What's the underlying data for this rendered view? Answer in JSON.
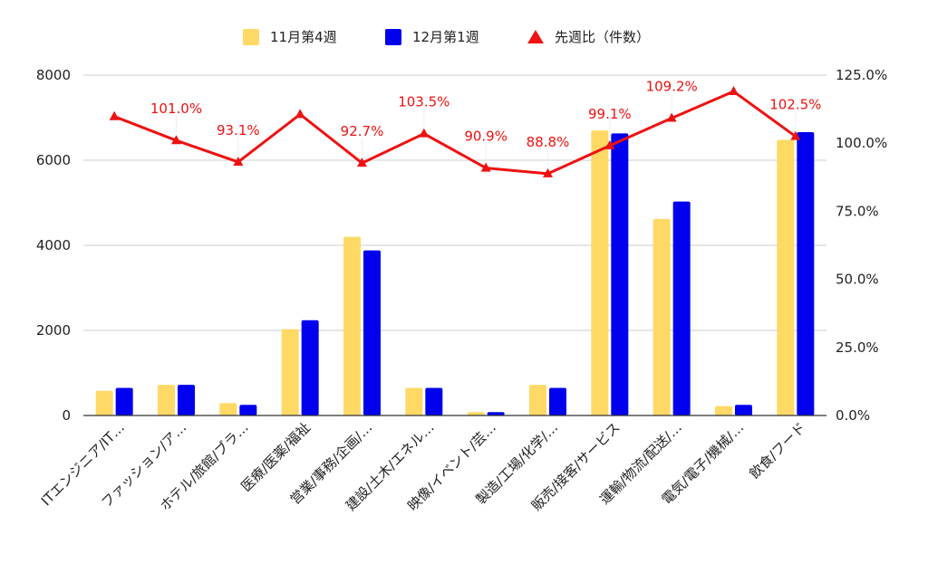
{
  "chart_data": {
    "type": "bar",
    "categories": [
      "ITエンジニア/IT…",
      "ファッション/ア…",
      "ホテル/旅館/ブラ…",
      "医療/医薬/福祉",
      "営業/事務/企画/…",
      "建設/土木/エネル…",
      "映像/イベント/芸…",
      "製造/工場/化学/…",
      "販売/接客/サービス",
      "運輸/物流/配送/…",
      "電気/電子/機械/…",
      "飲食/フード"
    ],
    "series": [
      {
        "name": "11月第4週",
        "type": "bar",
        "axis": "left",
        "color": "#FFD966",
        "values": [
          580,
          720,
          290,
          2030,
          4200,
          650,
          80,
          720,
          6700,
          4620,
          220,
          6480
        ]
      },
      {
        "name": "12月第1週",
        "type": "bar",
        "axis": "left",
        "color": "#0000EE",
        "values": [
          650,
          720,
          250,
          2240,
          3880,
          650,
          80,
          650,
          6630,
          5030,
          250,
          6660
        ]
      },
      {
        "name": "先週比（件数）",
        "type": "line",
        "axis": "right",
        "color": "#EE1111",
        "values": [
          109.8,
          101.0,
          93.1,
          110.6,
          92.7,
          103.5,
          90.9,
          88.8,
          99.1,
          109.2,
          119.0,
          102.5
        ],
        "labels": [
          "",
          "101.0%",
          "93.1%",
          "",
          "92.7%",
          "103.5%",
          "90.9%",
          "88.8%",
          "99.1%",
          "109.2%",
          "",
          "102.5%"
        ]
      }
    ],
    "y_left": {
      "ylim": [
        0,
        8000
      ],
      "ticks": [
        "0",
        "2000",
        "4000",
        "6000",
        "8000"
      ]
    },
    "y_right": {
      "ylim": [
        0,
        125
      ],
      "ticks": [
        "0.0%",
        "25.0%",
        "50.0%",
        "75.0%",
        "100.0%",
        "125.0%"
      ]
    },
    "grid": true,
    "legend": "top-center"
  }
}
